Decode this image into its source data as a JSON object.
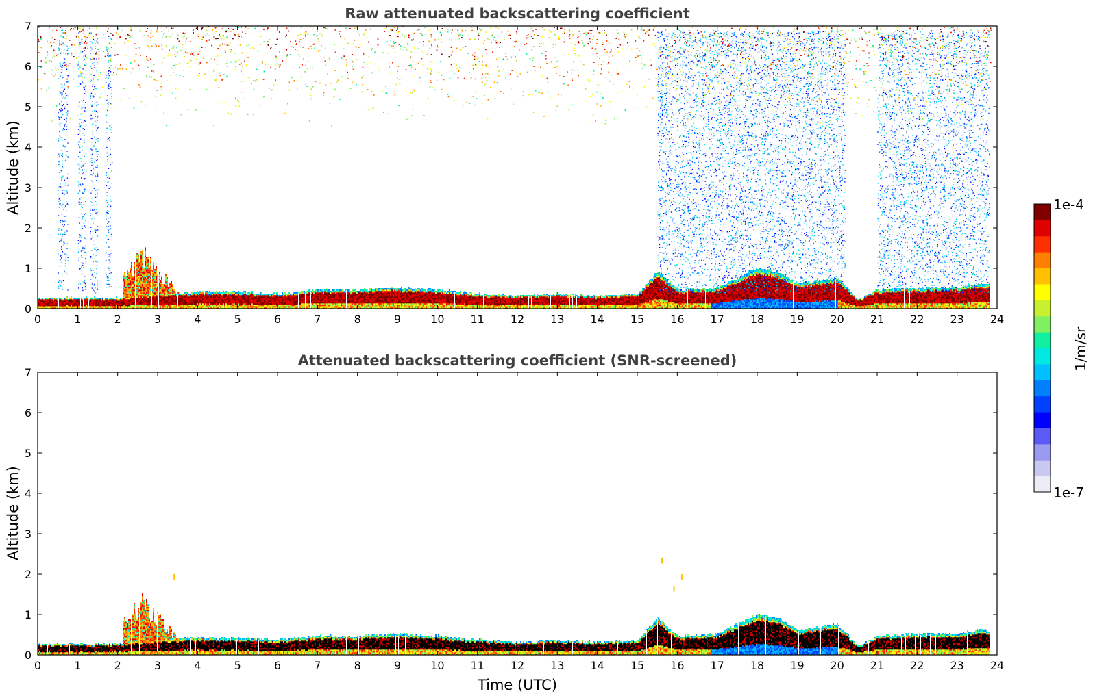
{
  "colors": {
    "colormap": [
      "#ececf6",
      "#c8c8f0",
      "#9a9aee",
      "#5a5af5",
      "#0000ff",
      "#0040ff",
      "#0080ff",
      "#00c0ff",
      "#00e8e0",
      "#10f0a0",
      "#80f060",
      "#c8f030",
      "#ffff00",
      "#ffc000",
      "#ff8000",
      "#ff3000",
      "#e00000",
      "#800000"
    ],
    "black_core": "#000000",
    "frame": "#000000"
  },
  "colorbar": {
    "max_label": "1e-4",
    "min_label": "1e-7",
    "unit_label": "1/m/sr",
    "scale": "log",
    "range": [
      1e-07,
      0.0001
    ]
  },
  "chart_data": [
    {
      "type": "heatmap",
      "title": "Raw attenuated backscattering coefficient",
      "xlabel": "",
      "ylabel": "Altitude (km)",
      "xlim": [
        0,
        24
      ],
      "ylim": [
        0,
        7
      ],
      "xticks": [
        "0",
        "1",
        "2",
        "3",
        "4",
        "5",
        "6",
        "7",
        "8",
        "9",
        "10",
        "11",
        "12",
        "13",
        "14",
        "15",
        "16",
        "17",
        "18",
        "19",
        "20",
        "21",
        "22",
        "23",
        "24"
      ],
      "yticks": [
        "0",
        "1",
        "2",
        "3",
        "4",
        "5",
        "6",
        "7"
      ],
      "screened": false,
      "boundary_layer_top_km": {
        "x": [
          0,
          2,
          3,
          4,
          5,
          6,
          7,
          8,
          9,
          10,
          11,
          12,
          13,
          14,
          15,
          15.5,
          16,
          17,
          18,
          18.5,
          19,
          20,
          20.5,
          21,
          22,
          23,
          23.5,
          23.8
        ],
        "y": [
          0.25,
          0.25,
          0.35,
          0.4,
          0.4,
          0.35,
          0.45,
          0.45,
          0.5,
          0.45,
          0.35,
          0.3,
          0.35,
          0.3,
          0.35,
          0.9,
          0.45,
          0.5,
          1.0,
          0.9,
          0.6,
          0.75,
          0.2,
          0.45,
          0.5,
          0.5,
          0.6,
          0.6
        ]
      },
      "aerosol_plume": {
        "x_range": [
          2.1,
          3.8
        ],
        "top_km": 1.6
      },
      "noise_region_top": {
        "y_range": [
          4.5,
          7
        ]
      },
      "noise_columns": [
        [
          0.5,
          0.75
        ],
        [
          1.0,
          1.2
        ],
        [
          1.3,
          1.5
        ],
        [
          1.7,
          1.85
        ],
        [
          15.5,
          20.2
        ],
        [
          21.0,
          23.8
        ]
      ]
    },
    {
      "type": "heatmap",
      "title": "Attenuated backscattering coefficient (SNR-screened)",
      "xlabel": "Time (UTC)",
      "ylabel": "Altitude (km)",
      "xlim": [
        0,
        24
      ],
      "ylim": [
        0,
        7
      ],
      "xticks": [
        "0",
        "1",
        "2",
        "3",
        "4",
        "5",
        "6",
        "7",
        "8",
        "9",
        "10",
        "11",
        "12",
        "13",
        "14",
        "15",
        "16",
        "17",
        "18",
        "19",
        "20",
        "21",
        "22",
        "23",
        "24"
      ],
      "yticks": [
        "0",
        "1",
        "2",
        "3",
        "4",
        "5",
        "6",
        "7"
      ],
      "screened": true
    }
  ]
}
